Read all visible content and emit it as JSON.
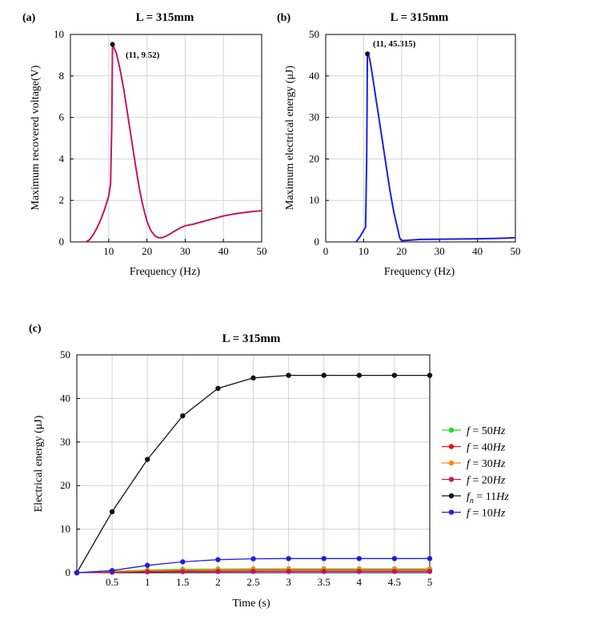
{
  "chart_data": [
    {
      "panel": "(a)",
      "type": "line",
      "title": "L = 315mm",
      "xlabel": "Frequency (Hz)",
      "ylabel": "Maximum recovered voltage(V)",
      "xlim": [
        0,
        50
      ],
      "ylim": [
        0,
        10
      ],
      "xticks": [
        10,
        20,
        30,
        40,
        50
      ],
      "yticks": [
        0,
        2,
        4,
        6,
        8,
        10
      ],
      "series": [
        {
          "name": "voltage",
          "color": "#c2185b",
          "x": [
            4,
            5,
            6,
            7,
            8,
            9,
            10,
            10.5,
            10.8,
            11,
            12,
            13,
            14,
            15,
            16,
            17,
            18,
            19,
            20,
            21,
            22,
            23,
            24,
            25,
            26,
            27,
            28,
            29,
            30,
            32,
            34,
            36,
            38,
            40,
            42,
            44,
            46,
            48,
            50
          ],
          "y": [
            0,
            0.1,
            0.35,
            0.7,
            1.1,
            1.6,
            2.2,
            2.8,
            5.5,
            9.52,
            9.1,
            8.3,
            7.3,
            6.1,
            4.9,
            3.7,
            2.6,
            1.7,
            1.0,
            0.55,
            0.3,
            0.2,
            0.2,
            0.28,
            0.38,
            0.5,
            0.6,
            0.7,
            0.78,
            0.85,
            0.95,
            1.05,
            1.15,
            1.25,
            1.32,
            1.38,
            1.43,
            1.47,
            1.5
          ]
        }
      ],
      "annotation": {
        "x": 11,
        "y": 9.52,
        "label": "(11, 9.52)"
      }
    },
    {
      "panel": "(b)",
      "type": "line",
      "title": "L = 315mm",
      "xlabel": "Frequency (Hz)",
      "ylabel": "Maximum electrical energy (μJ)",
      "xlim": [
        0,
        50
      ],
      "ylim": [
        0,
        50
      ],
      "xticks": [
        0,
        10,
        20,
        30,
        40,
        50
      ],
      "yticks": [
        0,
        10,
        20,
        30,
        40,
        50
      ],
      "series": [
        {
          "name": "energy",
          "color": "#1f1fe0",
          "x": [
            8,
            9,
            10,
            10.5,
            10.8,
            11,
            11.5,
            12,
            13,
            14,
            15,
            16,
            17,
            18,
            19,
            19.5,
            20,
            22,
            25,
            30,
            35,
            40,
            45,
            50
          ],
          "y": [
            0,
            1.2,
            2.8,
            3.5,
            20,
            45.315,
            44.5,
            42,
            36,
            30,
            24,
            18,
            12,
            7,
            3,
            1,
            0.3,
            0.4,
            0.6,
            0.65,
            0.7,
            0.75,
            0.85,
            1.0
          ]
        }
      ],
      "annotation": {
        "x": 11,
        "y": 45.315,
        "label": "(11, 45.315)"
      }
    },
    {
      "panel": "(c)",
      "type": "line",
      "title": "L = 315mm",
      "xlabel": "Time (s)",
      "ylabel": "Electrical energy (μJ)",
      "xlim": [
        0,
        5
      ],
      "ylim": [
        0,
        50
      ],
      "xticks": [
        "0.5",
        "1",
        "1.5",
        "2",
        "2.5",
        "3",
        "3.5",
        "4",
        "4.5",
        "5"
      ],
      "yticks": [
        0,
        10,
        20,
        30,
        40,
        50
      ],
      "x": [
        0,
        0.5,
        1,
        1.5,
        2,
        2.5,
        3,
        3.5,
        4,
        4.5,
        5
      ],
      "series": [
        {
          "sym": "f",
          "eq": " = ",
          "val": "50",
          "unit": "Hz",
          "color": "#22dd22",
          "values": [
            0,
            0.3,
            0.6,
            0.8,
            0.85,
            0.9,
            0.9,
            0.9,
            0.9,
            0.9,
            0.9
          ]
        },
        {
          "sym": "f",
          "eq": " = ",
          "val": "40",
          "unit": "Hz",
          "color": "#ee1111",
          "values": [
            0,
            0.2,
            0.4,
            0.5,
            0.55,
            0.6,
            0.6,
            0.6,
            0.6,
            0.6,
            0.6
          ]
        },
        {
          "sym": "f",
          "eq": " = ",
          "val": "30",
          "unit": "Hz",
          "color": "#ff8c00",
          "values": [
            0,
            0.25,
            0.5,
            0.65,
            0.7,
            0.75,
            0.75,
            0.75,
            0.75,
            0.75,
            0.75
          ]
        },
        {
          "sym": "f",
          "eq": " = ",
          "val": "20",
          "unit": "Hz",
          "color": "#c2185b",
          "values": [
            0,
            0.1,
            0.2,
            0.25,
            0.28,
            0.3,
            0.3,
            0.3,
            0.3,
            0.3,
            0.3
          ]
        },
        {
          "sym": "f",
          "sub": "n",
          "eq": " = ",
          "val": "11",
          "unit": "Hz",
          "color": "#111111",
          "values": [
            0,
            14,
            26,
            36,
            42.3,
            44.7,
            45.3,
            45.3,
            45.3,
            45.3,
            45.3
          ]
        },
        {
          "sym": "f",
          "eq": " = ",
          "val": "10",
          "unit": "Hz",
          "color": "#1f1fe0",
          "values": [
            0,
            0.5,
            1.7,
            2.5,
            3.0,
            3.2,
            3.25,
            3.25,
            3.25,
            3.25,
            3.25
          ]
        }
      ]
    }
  ]
}
